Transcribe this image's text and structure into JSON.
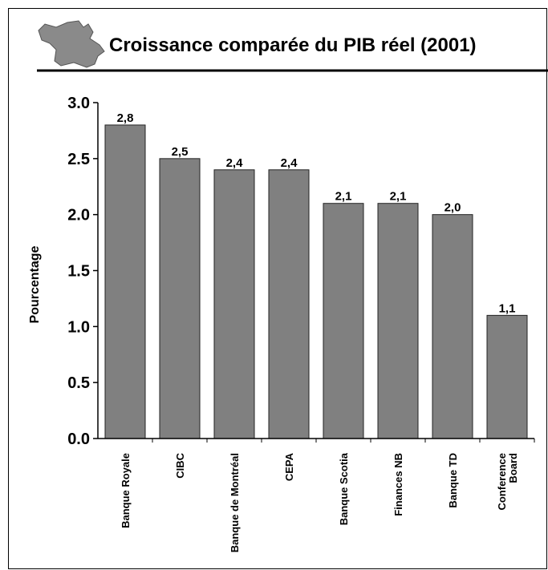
{
  "chart_data": {
    "type": "bar",
    "title": "Croissance comparée du PIB réel (2001)",
    "y_label": "Pourcentage",
    "categories": [
      "Banque Royale",
      "CIBC",
      "Banque de Montréal",
      "CEPA",
      "Banque Scotia",
      "Finances NB",
      "Banque TD",
      "Conference\nBoard"
    ],
    "values": [
      2.8,
      2.5,
      2.4,
      2.4,
      2.1,
      2.1,
      2.0,
      1.1
    ],
    "value_labels": [
      "2,8",
      "2,5",
      "2,4",
      "2,4",
      "2,1",
      "2,1",
      "2,0",
      "1,1"
    ],
    "color": "#808080",
    "ylim": [
      0,
      3
    ],
    "yticks": [
      {
        "value": 0,
        "label": "0.0"
      },
      0.5,
      {
        "value": 1,
        "label": "1.0"
      },
      1.5,
      {
        "value": 2,
        "label": "2.0"
      },
      2.5,
      {
        "value": 3,
        "label": "3.0"
      }
    ],
    "grid": false
  }
}
